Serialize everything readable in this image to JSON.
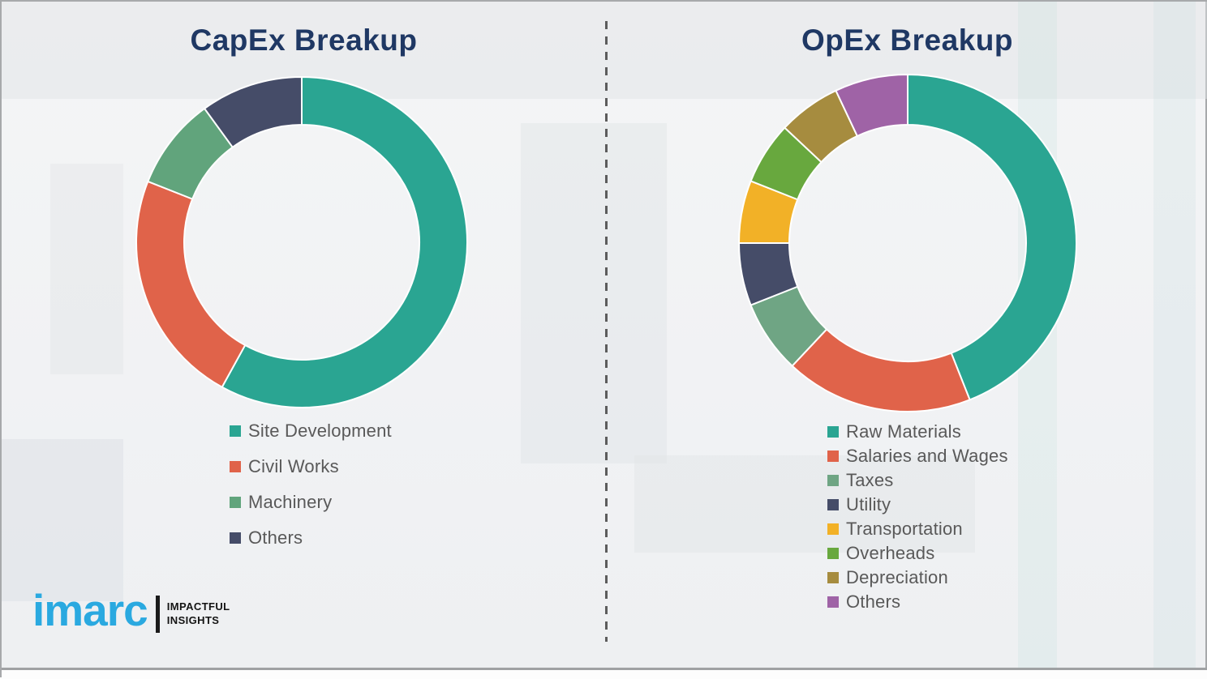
{
  "chart_data": [
    {
      "type": "pie",
      "subtype": "donut",
      "title": "CapEx Breakup",
      "labels": [
        "Site Development",
        "Civil Works",
        "Machinery",
        "Others"
      ],
      "values_pct": [
        58,
        23,
        9,
        10
      ],
      "colors": [
        "#2AA592",
        "#E0634A",
        "#61A47C",
        "#454C68"
      ],
      "legend_position": "bottom",
      "start_angle_deg": 0,
      "direction": "clockwise"
    },
    {
      "type": "pie",
      "subtype": "donut",
      "title": "OpEx Breakup",
      "labels": [
        "Raw Materials",
        "Salaries and Wages",
        "Taxes",
        "Utility",
        "Transportation",
        "Overheads",
        "Depreciation",
        "Others"
      ],
      "values_pct": [
        44,
        18,
        7,
        6,
        6,
        6,
        6,
        7
      ],
      "colors": [
        "#2AA592",
        "#E0634A",
        "#6FA584",
        "#454C68",
        "#F2B127",
        "#68A83E",
        "#A68C3F",
        "#9F63A6"
      ],
      "legend_position": "bottom",
      "start_angle_deg": 0,
      "direction": "clockwise"
    }
  ],
  "style": {
    "title_color": "#1F3864",
    "legend_text_color": "#595959",
    "segment_gap_color": "#FFFFFF"
  },
  "divider": {
    "orientation": "vertical",
    "style": "dashed",
    "color": "#5C5C5C"
  },
  "logo": {
    "brand": "imarc",
    "tagline_line1": "IMPACTFUL",
    "tagline_line2": "INSIGHTS",
    "brand_color": "#2AA9E0",
    "separator_color": "#1A1A1A"
  }
}
